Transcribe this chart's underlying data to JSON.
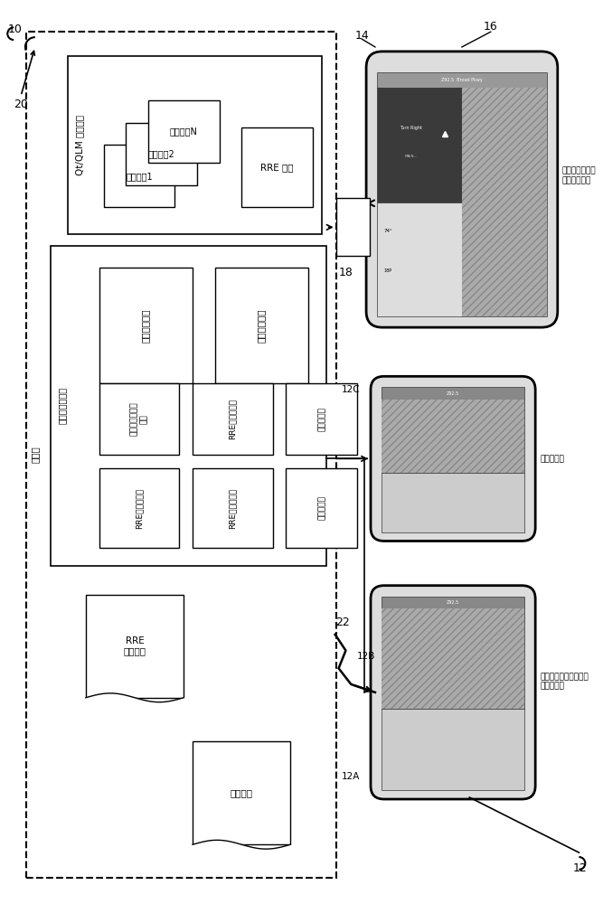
{
  "bg_color": "#ffffff",
  "title_10": "10",
  "title_20": "20",
  "label_14": "14",
  "label_16": "16",
  "label_18": "18",
  "label_22": "22",
  "label_12": "12",
  "label_12A": "12A",
  "label_12B": "12B",
  "label_12C": "12C",
  "controller_label": "控制器",
  "runtime_engine_label": "运行时规则引擎",
  "qt_qlm_label": "Qt/QLM 应用程序",
  "app1_label": "应用程序1",
  "app2_label": "应用程序2",
  "appN_label": "应用程序N",
  "rre_ui_label": "RRE 界面",
  "app_ui_label": "应用程序界面",
  "state_personal_label": "状态个性化器",
  "app_mgr_label": "应用程序管理器\n控制",
  "rre_state_mgr_label": "RRE状态管理器",
  "theme_mgr_label": "主题管理器",
  "rre_config_parser_label": "RRE配置解析器",
  "rre_config_gen_label": "RRE配置生成器",
  "brief_validator_label": "简档验证器",
  "rre_config_file_label": "RRE\n配置文件",
  "panel_brief_label": "面板简档",
  "display1_label": "车辆显示器上的\n多个应用程序",
  "display2_label": "车辆显示器",
  "display3_label": "远程设备显示器可以是\n任何分辨率"
}
